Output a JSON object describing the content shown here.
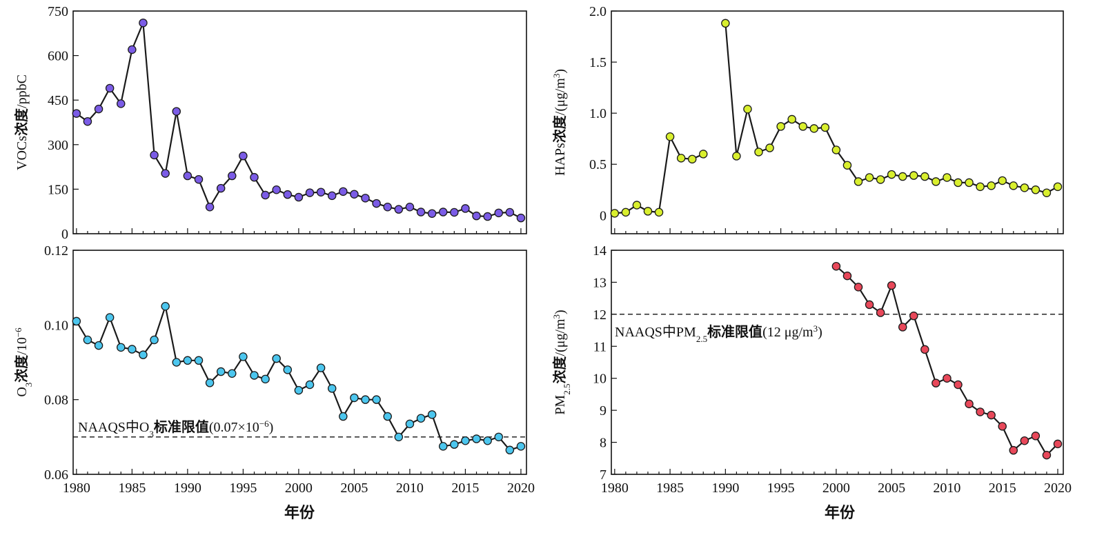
{
  "chart_data": [
    {
      "type": "line",
      "id": "voc",
      "ylabel_parts": [
        {
          "t": "VOCs",
          "style": "n"
        },
        {
          "t": "浓度",
          "style": "b"
        },
        {
          "t": "/ppbC",
          "style": "n"
        }
      ],
      "xlabel": "",
      "xlim": [
        1979.7,
        2020.5
      ],
      "ylim": [
        0,
        750
      ],
      "xticks": [
        1980,
        1985,
        1990,
        1995,
        2000,
        2005,
        2010,
        2015,
        2020
      ],
      "yticks": [
        0,
        150,
        300,
        450,
        600,
        750
      ],
      "ytick_labels": [
        "0",
        "150",
        "300",
        "450",
        "600",
        "750"
      ],
      "color": "#7b5ce6",
      "x": [
        1980,
        1981,
        1982,
        1983,
        1984,
        1985,
        1986,
        1987,
        1988,
        1989,
        1990,
        1991,
        1992,
        1993,
        1994,
        1995,
        1996,
        1997,
        1998,
        1999,
        2000,
        2001,
        2002,
        2003,
        2004,
        2005,
        2006,
        2007,
        2008,
        2009,
        2010,
        2011,
        2012,
        2013,
        2014,
        2015,
        2016,
        2017,
        2018,
        2019,
        2020
      ],
      "y": [
        405,
        378,
        420,
        490,
        438,
        620,
        710,
        265,
        203,
        412,
        195,
        183,
        90,
        153,
        195,
        262,
        190,
        130,
        148,
        132,
        123,
        138,
        140,
        128,
        142,
        133,
        120,
        102,
        90,
        82,
        90,
        73,
        68,
        73,
        72,
        85,
        60,
        58,
        70,
        72,
        53
      ]
    },
    {
      "type": "line",
      "id": "haps",
      "ylabel_parts": [
        {
          "t": "HAPs",
          "style": "n"
        },
        {
          "t": "浓度",
          "style": "b"
        },
        {
          "t": "/(μg/m",
          "style": "n"
        },
        {
          "t": "3",
          "style": "sup"
        },
        {
          "t": ")",
          "style": "n"
        }
      ],
      "xlabel": "",
      "xlim": [
        1979.7,
        2020.5
      ],
      "ylim": [
        -0.18,
        2.0
      ],
      "xticks": [
        1980,
        1985,
        1990,
        1995,
        2000,
        2005,
        2010,
        2015,
        2020
      ],
      "yticks": [
        0,
        0.5,
        1.0,
        1.5,
        2.0
      ],
      "ytick_labels": [
        "0",
        "0.5",
        "1.0",
        "1.5",
        "2.0"
      ],
      "color": "#d9ef2e",
      "x": [
        1980,
        1981,
        1982,
        1983,
        1984,
        1985,
        1986,
        1987,
        1988,
        1989,
        1990,
        1991,
        1992,
        1993,
        1994,
        1995,
        1996,
        1997,
        1998,
        1999,
        2000,
        2001,
        2002,
        2003,
        2004,
        2005,
        2006,
        2007,
        2008,
        2009,
        2010,
        2011,
        2012,
        2013,
        2014,
        2015,
        2016,
        2017,
        2018,
        2019,
        2020
      ],
      "y": [
        0.02,
        0.03,
        0.1,
        0.04,
        0.03,
        0.77,
        0.56,
        0.55,
        0.6,
        null,
        1.88,
        0.58,
        1.04,
        0.62,
        0.66,
        0.87,
        0.94,
        0.87,
        0.85,
        0.86,
        0.64,
        0.49,
        0.33,
        0.37,
        0.35,
        0.4,
        0.38,
        0.39,
        0.38,
        0.33,
        0.37,
        0.32,
        0.32,
        0.28,
        0.29,
        0.34,
        0.29,
        0.27,
        0.25,
        0.22,
        0.28
      ]
    },
    {
      "type": "line",
      "id": "o3",
      "ylabel_parts": [
        {
          "t": "O",
          "style": "n"
        },
        {
          "t": "3",
          "style": "sub"
        },
        {
          "t": "浓度",
          "style": "b"
        },
        {
          "t": "/10",
          "style": "n"
        },
        {
          "t": "−6",
          "style": "sup"
        }
      ],
      "xlabel": "年份",
      "xlim": [
        1979.7,
        2020.5
      ],
      "ylim": [
        0.06,
        0.12
      ],
      "xticks": [
        1980,
        1985,
        1990,
        1995,
        2000,
        2005,
        2010,
        2015,
        2020
      ],
      "xtick_labels": [
        "1980",
        "1985",
        "1990",
        "1995",
        "2000",
        "2005",
        "2010",
        "2015",
        "2020"
      ],
      "yticks": [
        0.06,
        0.08,
        0.1,
        0.12
      ],
      "ytick_labels": [
        "0.06",
        "0.08",
        "0.10",
        "0.12"
      ],
      "color": "#4cc6ee",
      "hline": 0.07,
      "hline_label_parts": [
        {
          "t": "NAAQS",
          "style": "n"
        },
        {
          "t": "中",
          "style": "n"
        },
        {
          "t": "O",
          "style": "n"
        },
        {
          "t": "3",
          "style": "sub"
        },
        {
          "t": "标准限值",
          "style": "b"
        },
        {
          "t": "(0.07×10",
          "style": "n"
        },
        {
          "t": "−6",
          "style": "sup"
        },
        {
          "t": ")",
          "style": "n"
        }
      ],
      "x": [
        1980,
        1981,
        1982,
        1983,
        1984,
        1985,
        1986,
        1987,
        1988,
        1989,
        1990,
        1991,
        1992,
        1993,
        1994,
        1995,
        1996,
        1997,
        1998,
        1999,
        2000,
        2001,
        2002,
        2003,
        2004,
        2005,
        2006,
        2007,
        2008,
        2009,
        2010,
        2011,
        2012,
        2013,
        2014,
        2015,
        2016,
        2017,
        2018,
        2019,
        2020
      ],
      "y": [
        0.101,
        0.096,
        0.0945,
        0.102,
        0.094,
        0.0935,
        0.092,
        0.096,
        0.105,
        0.09,
        0.0905,
        0.0905,
        0.0845,
        0.0875,
        0.087,
        0.0915,
        0.0865,
        0.0855,
        0.091,
        0.088,
        0.0825,
        0.084,
        0.0885,
        0.083,
        0.0755,
        0.0805,
        0.08,
        0.08,
        0.0755,
        0.07,
        0.0735,
        0.075,
        0.076,
        0.0675,
        0.068,
        0.069,
        0.0695,
        0.069,
        0.07,
        0.0665,
        0.0675
      ]
    },
    {
      "type": "line",
      "id": "pm25",
      "ylabel_parts": [
        {
          "t": "PM",
          "style": "n"
        },
        {
          "t": "2.5",
          "style": "sub"
        },
        {
          "t": "浓度",
          "style": "b"
        },
        {
          "t": "/(μg/m",
          "style": "n"
        },
        {
          "t": "3",
          "style": "sup"
        },
        {
          "t": ")",
          "style": "n"
        }
      ],
      "xlabel": "年份",
      "xlim": [
        1979.7,
        2020.5
      ],
      "ylim": [
        7,
        14
      ],
      "xticks": [
        1980,
        1985,
        1990,
        1995,
        2000,
        2005,
        2010,
        2015,
        2020
      ],
      "xtick_labels": [
        "1980",
        "1985",
        "1990",
        "1995",
        "2000",
        "2005",
        "2010",
        "2015",
        "2020"
      ],
      "yticks": [
        7,
        8,
        9,
        10,
        11,
        12,
        13,
        14
      ],
      "ytick_labels": [
        "7",
        "8",
        "9",
        "10",
        "11",
        "12",
        "13",
        "14"
      ],
      "color": "#e8485a",
      "hline": 12,
      "hline_label_parts": [
        {
          "t": "NAAQS",
          "style": "n"
        },
        {
          "t": "中",
          "style": "n"
        },
        {
          "t": "PM",
          "style": "n"
        },
        {
          "t": "2.5",
          "style": "sub"
        },
        {
          "t": "标准限值",
          "style": "b"
        },
        {
          "t": "(12 μg/m",
          "style": "n"
        },
        {
          "t": "3",
          "style": "sup"
        },
        {
          "t": ")",
          "style": "n"
        }
      ],
      "x": [
        2000,
        2001,
        2002,
        2003,
        2004,
        2005,
        2006,
        2007,
        2008,
        2009,
        2010,
        2011,
        2012,
        2013,
        2014,
        2015,
        2016,
        2017,
        2018,
        2019,
        2020
      ],
      "y": [
        13.5,
        13.2,
        12.85,
        12.3,
        12.05,
        12.9,
        11.6,
        11.95,
        10.9,
        9.85,
        10.0,
        9.8,
        9.2,
        8.95,
        8.85,
        8.5,
        7.75,
        8.05,
        8.2,
        7.6,
        7.95
      ]
    }
  ]
}
